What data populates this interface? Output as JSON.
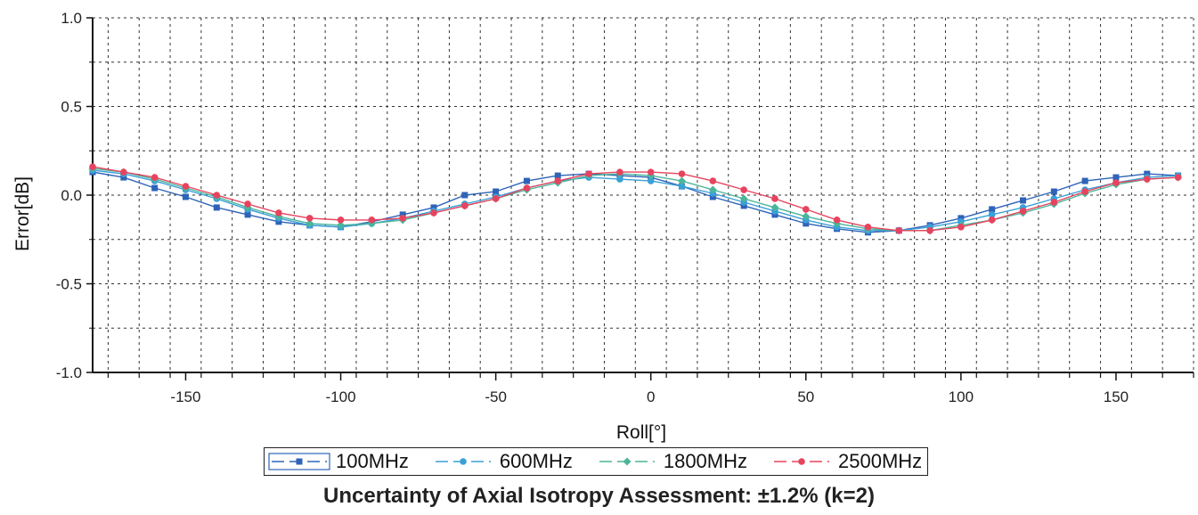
{
  "chart_data": {
    "type": "line",
    "xlabel": "Roll[°]",
    "ylabel": "Error[dB]",
    "xlim": [
      -180,
      175
    ],
    "ylim": [
      -1.0,
      1.0
    ],
    "x_ticks": [
      -150,
      -100,
      -50,
      0,
      50,
      100,
      150
    ],
    "y_ticks": [
      -1.0,
      -0.5,
      0.0,
      0.5,
      1.0
    ],
    "y_tick_labels": [
      "-1.0",
      "-0.5",
      "0.0",
      "0.5",
      "1.0"
    ],
    "grid": true,
    "legend_position": "bottom",
    "x": [
      -180,
      -170,
      -160,
      -150,
      -140,
      -130,
      -120,
      -110,
      -100,
      -90,
      -80,
      -70,
      -60,
      -50,
      -40,
      -30,
      -20,
      -10,
      0,
      10,
      20,
      30,
      40,
      50,
      60,
      70,
      80,
      90,
      100,
      110,
      120,
      130,
      140,
      150,
      160,
      170
    ],
    "series": [
      {
        "name": "100MHz",
        "color": "#2e63b8",
        "marker": "square",
        "values": [
          0.13,
          0.1,
          0.04,
          -0.01,
          -0.07,
          -0.11,
          -0.15,
          -0.17,
          -0.18,
          -0.15,
          -0.11,
          -0.07,
          0.0,
          0.02,
          0.08,
          0.11,
          0.12,
          0.11,
          0.1,
          0.05,
          -0.01,
          -0.06,
          -0.11,
          -0.16,
          -0.19,
          -0.21,
          -0.2,
          -0.17,
          -0.13,
          -0.08,
          -0.03,
          0.02,
          0.08,
          0.1,
          0.12,
          0.11
        ]
      },
      {
        "name": "600MHz",
        "color": "#3aa0d8",
        "marker": "circle",
        "values": [
          0.14,
          0.12,
          0.08,
          0.03,
          -0.02,
          -0.08,
          -0.13,
          -0.17,
          -0.18,
          -0.16,
          -0.13,
          -0.09,
          -0.05,
          -0.01,
          0.04,
          0.08,
          0.1,
          0.09,
          0.08,
          0.05,
          0.01,
          -0.04,
          -0.09,
          -0.14,
          -0.18,
          -0.2,
          -0.2,
          -0.18,
          -0.15,
          -0.11,
          -0.07,
          -0.02,
          0.03,
          0.07,
          0.1,
          0.11
        ]
      },
      {
        "name": "1800MHz",
        "color": "#4bb59a",
        "marker": "diamond",
        "values": [
          0.15,
          0.13,
          0.09,
          0.04,
          -0.01,
          -0.07,
          -0.12,
          -0.16,
          -0.17,
          -0.16,
          -0.14,
          -0.1,
          -0.06,
          -0.02,
          0.03,
          0.07,
          0.11,
          0.12,
          0.11,
          0.08,
          0.03,
          -0.02,
          -0.07,
          -0.12,
          -0.16,
          -0.19,
          -0.2,
          -0.2,
          -0.17,
          -0.14,
          -0.1,
          -0.05,
          0.01,
          0.06,
          0.09,
          0.1
        ]
      },
      {
        "name": "2500MHz",
        "color": "#e8435e",
        "marker": "circle",
        "values": [
          0.16,
          0.13,
          0.1,
          0.05,
          0.0,
          -0.05,
          -0.1,
          -0.13,
          -0.14,
          -0.14,
          -0.13,
          -0.1,
          -0.06,
          -0.02,
          0.04,
          0.08,
          0.12,
          0.13,
          0.13,
          0.12,
          0.08,
          0.03,
          -0.02,
          -0.08,
          -0.14,
          -0.18,
          -0.2,
          -0.2,
          -0.18,
          -0.14,
          -0.09,
          -0.04,
          0.02,
          0.07,
          0.09,
          0.1
        ]
      }
    ]
  },
  "caption": "Uncertainty of Axial Isotropy Assessment: ±1.2% (k=2)"
}
